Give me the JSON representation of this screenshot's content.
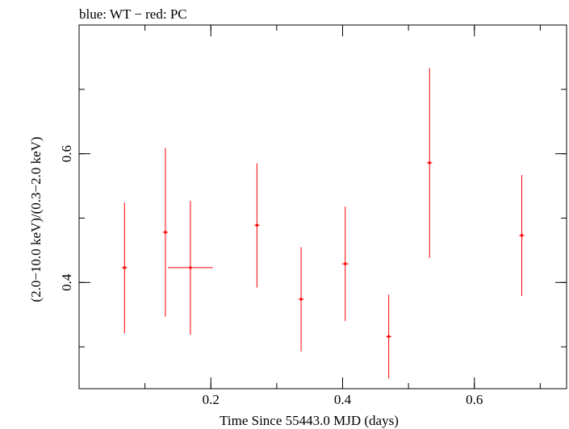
{
  "chart_data": {
    "type": "scatter",
    "title": "blue: WT − red: PC",
    "xlabel": "Time Since 55443.0 MJD (days)",
    "ylabel": "(2.0−10.0 keV)/(0.3−2.0 keV)",
    "xlim": [
      0.0,
      0.74
    ],
    "ylim": [
      0.235,
      0.8
    ],
    "x_ticks": [
      {
        "value": 0.2,
        "label": "0.2"
      },
      {
        "value": 0.4,
        "label": "0.4"
      },
      {
        "value": 0.6,
        "label": "0.6"
      }
    ],
    "y_ticks": [
      {
        "value": 0.4,
        "label": "0.4"
      },
      {
        "value": 0.6,
        "label": "0.6"
      }
    ],
    "x_minor_step": 0.1,
    "y_minor_step": 0.1,
    "grid": false,
    "legend": "none",
    "series": [
      {
        "color": "#ff0000",
        "points": [
          {
            "x": 0.069,
            "y": 0.423,
            "xerr": 0.004,
            "yerr_low": 0.102,
            "yerr_high": 0.101
          },
          {
            "x": 0.131,
            "y": 0.478,
            "xerr": 0.004,
            "yerr_low": 0.131,
            "yerr_high": 0.131
          },
          {
            "x": 0.169,
            "y": 0.423,
            "xerr": 0.034,
            "yerr_low": 0.104,
            "yerr_high": 0.104
          },
          {
            "x": 0.27,
            "y": 0.489,
            "xerr": 0.004,
            "yerr_low": 0.097,
            "yerr_high": 0.096
          },
          {
            "x": 0.337,
            "y": 0.374,
            "xerr": 0.004,
            "yerr_low": 0.081,
            "yerr_high": 0.081
          },
          {
            "x": 0.404,
            "y": 0.429,
            "xerr": 0.005,
            "yerr_low": 0.089,
            "yerr_high": 0.089
          },
          {
            "x": 0.47,
            "y": 0.316,
            "xerr": 0.004,
            "yerr_low": 0.065,
            "yerr_high": 0.065
          },
          {
            "x": 0.532,
            "y": 0.586,
            "xerr": 0.004,
            "yerr_low": 0.148,
            "yerr_high": 0.147
          },
          {
            "x": 0.672,
            "y": 0.473,
            "xerr": 0.004,
            "yerr_low": 0.094,
            "yerr_high": 0.094
          }
        ]
      }
    ]
  }
}
